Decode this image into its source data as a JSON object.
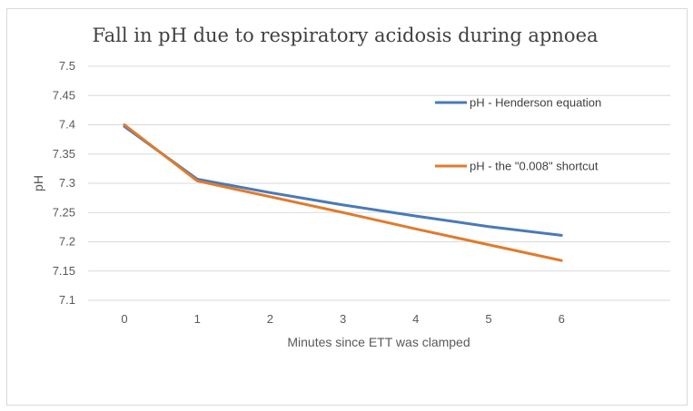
{
  "chart_data": {
    "type": "line",
    "title": "Fall in pH due to respiratory acidosis during apnoea",
    "xlabel": "Minutes since ETT was clamped",
    "ylabel": "pH",
    "categories": [
      "0",
      "1",
      "2",
      "3",
      "4",
      "5",
      "6"
    ],
    "x": [
      0,
      1,
      2,
      3,
      4,
      5,
      6
    ],
    "ylim": [
      7.1,
      7.5
    ],
    "yticks": [
      "7.1",
      "7.15",
      "7.2",
      "7.25",
      "7.3",
      "7.35",
      "7.4",
      "7.45",
      "7.5"
    ],
    "grid": true,
    "legend_position": "right",
    "series": [
      {
        "name": "pH - Henderson equation",
        "color": "#4a7ab5",
        "values": [
          7.397,
          7.307,
          7.284,
          7.263,
          7.244,
          7.226,
          7.211
        ]
      },
      {
        "name": "pH - the \"0.008\" shortcut",
        "color": "#e07b2d",
        "values": [
          7.4,
          7.304,
          7.277,
          7.25,
          7.222,
          7.195,
          7.168
        ]
      }
    ]
  }
}
